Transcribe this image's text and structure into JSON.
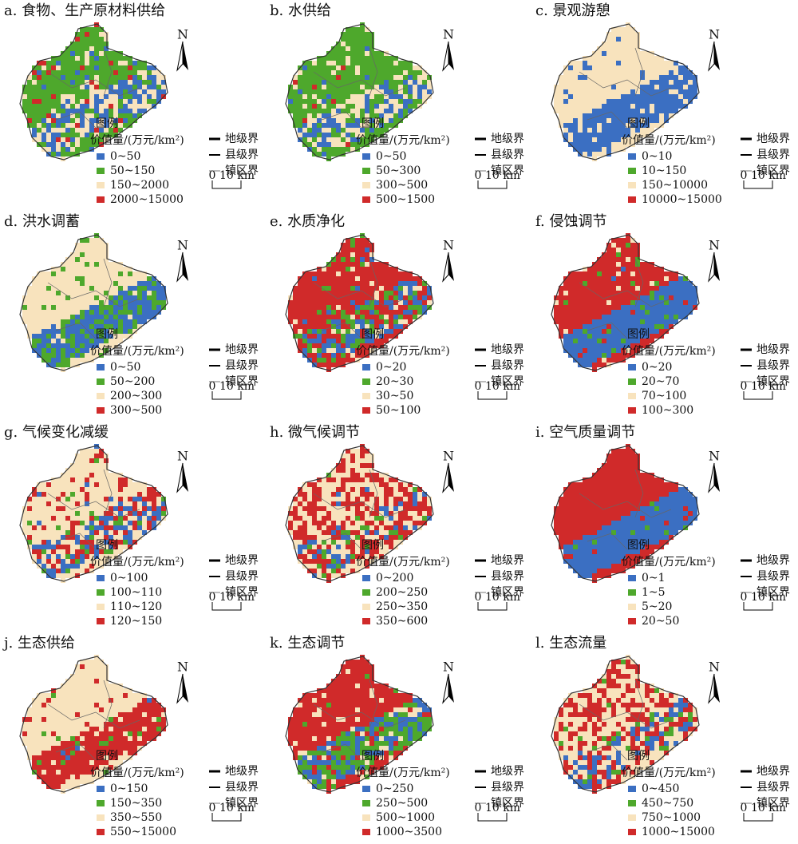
{
  "panels": [
    {
      "title": "a. 食物、生产原材料供给",
      "classes": [
        "0~50",
        "50~150",
        "150~2000",
        "2000~15000"
      ]
    },
    {
      "title": "b. 水供给",
      "classes": [
        "0~50",
        "50~300",
        "300~500",
        "500~1500"
      ]
    },
    {
      "title": "c. 景观游憩",
      "classes": [
        "0~10",
        "10~150",
        "150~10000",
        "10000~15000"
      ]
    },
    {
      "title": "d. 洪水调蓄",
      "classes": [
        "0~50",
        "50~200",
        "200~300",
        "300~500"
      ]
    },
    {
      "title": "e. 水质净化",
      "classes": [
        "0~20",
        "20~30",
        "30~50",
        "50~100"
      ]
    },
    {
      "title": "f. 侵蚀调节",
      "classes": [
        "0~20",
        "20~70",
        "70~100",
        "100~300"
      ]
    },
    {
      "title": "g. 气候变化减缓",
      "classes": [
        "0~100",
        "100~110",
        "110~120",
        "120~150"
      ]
    },
    {
      "title": "h. 微气候调节",
      "classes": [
        "0~200",
        "200~250",
        "250~350",
        "350~600"
      ]
    },
    {
      "title": "i. 空气质量调节",
      "classes": [
        "0~1",
        "1~5",
        "5~20",
        "20~50"
      ]
    },
    {
      "title": "j. 生态供给",
      "classes": [
        "0~150",
        "150~350",
        "350~550",
        "550~15000"
      ]
    },
    {
      "title": "k. 生态调节",
      "classes": [
        "0~250",
        "250~500",
        "500~1000",
        "1000~3500"
      ]
    },
    {
      "title": "l. 生态流量",
      "classes": [
        "0~450",
        "450~750",
        "750~1000",
        "1000~15000"
      ]
    }
  ],
  "legend_title": "图例",
  "unit": "价值量/(万元/km²)",
  "class_colors": [
    "#3b6fc2",
    "#4ea82c",
    "#f8e3bd",
    "#d02a2a"
  ],
  "boundaries": [
    "地级界",
    "县级界",
    "镇区界"
  ],
  "scale": {
    "start": "0",
    "end": "10 km"
  },
  "north": "N"
}
